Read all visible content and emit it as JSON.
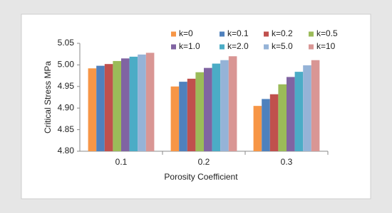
{
  "chart_data": {
    "type": "bar",
    "categories": [
      "0.1",
      "0.2",
      "0.3"
    ],
    "x_label": "Porosity Coefficient",
    "y_label": "Critical Stress MPa",
    "ylim": [
      4.8,
      5.05
    ],
    "yticks": [
      {
        "value": 4.8,
        "label": "4.80"
      },
      {
        "value": 4.85,
        "label": "4.85"
      },
      {
        "value": 4.9,
        "label": "4.90"
      },
      {
        "value": 4.95,
        "label": "4.95"
      },
      {
        "value": 5.0,
        "label": "5.00"
      },
      {
        "value": 5.05,
        "label": "5.05"
      }
    ],
    "grid": false,
    "legend": "top-right",
    "series": [
      {
        "name": "k=0",
        "color": "#f79646",
        "values": [
          4.992,
          4.95,
          4.905
        ]
      },
      {
        "name": "k=0.1",
        "color": "#4f81bd",
        "values": [
          4.998,
          4.961,
          4.921
        ]
      },
      {
        "name": "k=0.2",
        "color": "#c0504d",
        "values": [
          5.002,
          4.968,
          4.932
        ]
      },
      {
        "name": "k=0.5",
        "color": "#9bbb59",
        "values": [
          5.009,
          4.983,
          4.955
        ]
      },
      {
        "name": "k=1.0",
        "color": "#8064a2",
        "values": [
          5.015,
          4.993,
          4.972
        ]
      },
      {
        "name": "k=2.0",
        "color": "#4bacc6",
        "values": [
          5.019,
          5.003,
          4.984
        ]
      },
      {
        "name": "k=5.0",
        "color": "#95b3d7",
        "values": [
          5.024,
          5.011,
          4.999
        ]
      },
      {
        "name": "k=10",
        "color": "#d99694",
        "values": [
          5.028,
          5.02,
          5.011
        ]
      }
    ]
  }
}
